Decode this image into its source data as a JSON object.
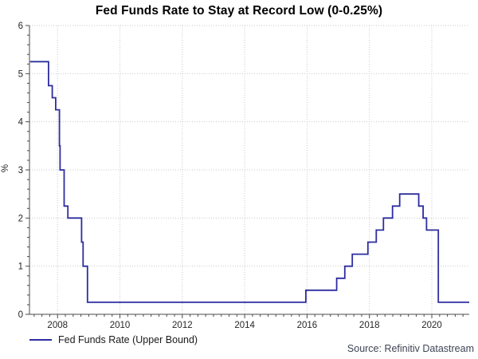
{
  "title": "Fed Funds Rate to Stay at Record Low (0-0.25%)",
  "source": "Source: Refinitiv Datastream",
  "chart_data": {
    "type": "line",
    "style": "step-after",
    "title": "Fed Funds Rate to Stay at Record Low (0-0.25%)",
    "xlabel": "",
    "ylabel": "%",
    "legend": [
      "Fed Funds Rate (Upper Bound)"
    ],
    "legend_position": "bottom-left",
    "grid": "dotted-major-both-axes",
    "xlim": [
      2007.1,
      2021.2
    ],
    "ylim": [
      0,
      6
    ],
    "xticks": [
      2008,
      2010,
      2012,
      2014,
      2016,
      2018,
      2020
    ],
    "yticks": [
      0,
      1,
      2,
      3,
      4,
      5,
      6
    ],
    "x_minor_step": 0.25,
    "y_minor_step": 0.2,
    "series": [
      {
        "name": "Fed Funds Rate (Upper Bound)",
        "color": "#2d2da0",
        "extend_to_xmax": true,
        "points": [
          [
            2007.12,
            5.25
          ],
          [
            2007.71,
            4.75
          ],
          [
            2007.83,
            4.5
          ],
          [
            2007.94,
            4.25
          ],
          [
            2008.06,
            3.5
          ],
          [
            2008.08,
            3.0
          ],
          [
            2008.21,
            2.25
          ],
          [
            2008.33,
            2.0
          ],
          [
            2008.77,
            1.5
          ],
          [
            2008.82,
            1.0
          ],
          [
            2008.96,
            0.25
          ],
          [
            2015.96,
            0.5
          ],
          [
            2016.95,
            0.75
          ],
          [
            2017.21,
            1.0
          ],
          [
            2017.45,
            1.25
          ],
          [
            2017.95,
            1.5
          ],
          [
            2018.22,
            1.75
          ],
          [
            2018.45,
            2.0
          ],
          [
            2018.74,
            2.25
          ],
          [
            2018.97,
            2.5
          ],
          [
            2019.58,
            2.25
          ],
          [
            2019.72,
            2.0
          ],
          [
            2019.83,
            1.75
          ],
          [
            2020.21,
            0.25
          ]
        ]
      }
    ],
    "colors": {
      "line": "#2d2da0",
      "grid": "#c9c9c9",
      "axis": "#4a4a4a",
      "tick_label": "#262626",
      "title": "#000000",
      "source_text": "#3c4453"
    }
  }
}
